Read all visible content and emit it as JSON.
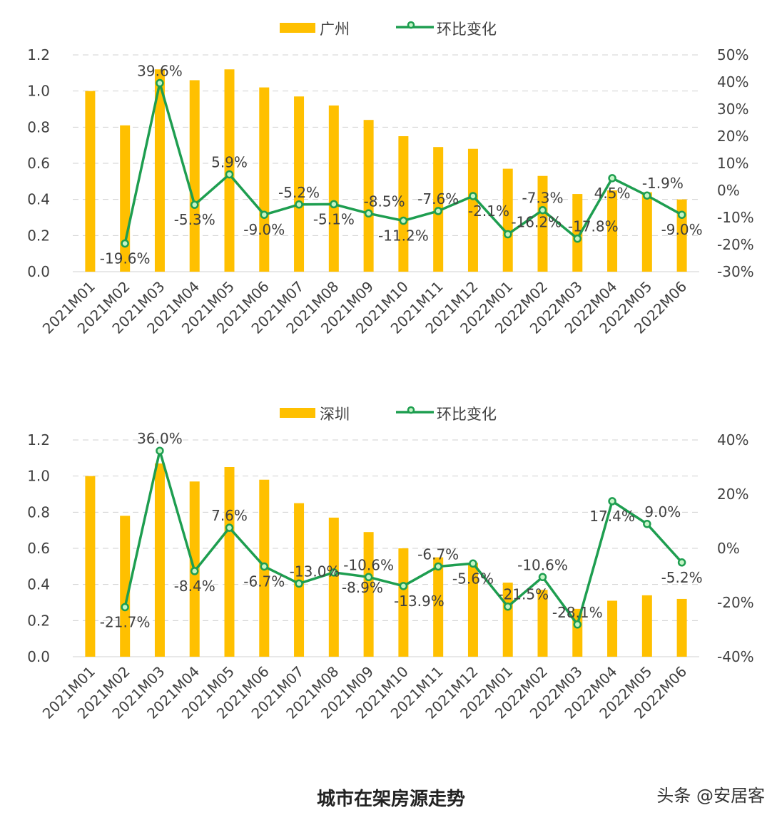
{
  "chart_data": [
    {
      "type": "bar+line",
      "categories": [
        "2021M01",
        "2021M02",
        "2021M03",
        "2021M04",
        "2021M05",
        "2021M06",
        "2021M07",
        "2021M08",
        "2021M09",
        "2021M10",
        "2021M11",
        "2021M12",
        "2022M01",
        "2022M02",
        "2022M03",
        "2022M04",
        "2022M05",
        "2022M06"
      ],
      "series": [
        {
          "name": "广州",
          "type": "bar",
          "axis": "left",
          "values": [
            1.0,
            0.81,
            1.12,
            1.06,
            1.12,
            1.02,
            0.97,
            0.92,
            0.84,
            0.75,
            0.69,
            0.68,
            0.57,
            0.53,
            0.43,
            0.45,
            0.44,
            0.4
          ]
        },
        {
          "name": "环比变化",
          "type": "line",
          "axis": "right",
          "values": [
            null,
            -19.6,
            39.6,
            -5.3,
            5.9,
            -9.0,
            -5.2,
            -5.1,
            -8.5,
            -11.2,
            -7.6,
            -2.1,
            -16.2,
            -7.3,
            -17.8,
            4.5,
            -1.9,
            -9.0
          ],
          "labels": [
            "",
            "-19.6%",
            "39.6%",
            "-5.3%",
            "5.9%",
            "-9.0%",
            "-5.2%",
            "-5.1%",
            "-8.5%",
            "-11.2%",
            "-7.6%",
            "-2.1%",
            "-16.2%",
            "-7.3%",
            "-17.8%",
            "4.5%",
            "-1.9%",
            "-9.0%"
          ]
        }
      ],
      "ylim_left": [
        0,
        1.2
      ],
      "yticks_left": [
        "0.0",
        "0.2",
        "0.4",
        "0.6",
        "0.8",
        "1.0",
        "1.2"
      ],
      "ylim_right": [
        -30,
        50
      ],
      "yticks_right": [
        "-30%",
        "-20%",
        "-10%",
        "0%",
        "10%",
        "20%",
        "30%",
        "40%",
        "50%"
      ],
      "grid": true,
      "legend": "top"
    },
    {
      "type": "bar+line",
      "categories": [
        "2021M01",
        "2021M02",
        "2021M03",
        "2021M04",
        "2021M05",
        "2021M06",
        "2021M07",
        "2021M08",
        "2021M09",
        "2021M10",
        "2021M11",
        "2021M12",
        "2022M01",
        "2022M02",
        "2022M03",
        "2022M04",
        "2022M05",
        "2022M06"
      ],
      "series": [
        {
          "name": "深圳",
          "type": "bar",
          "axis": "left",
          "values": [
            1.0,
            0.78,
            1.07,
            0.97,
            1.05,
            0.98,
            0.85,
            0.77,
            0.69,
            0.6,
            0.55,
            0.52,
            0.41,
            0.37,
            0.265,
            0.31,
            0.34,
            0.32
          ]
        },
        {
          "name": "环比变化",
          "type": "line",
          "axis": "right",
          "values": [
            null,
            -21.7,
            36.0,
            -8.4,
            7.6,
            -6.7,
            -13.0,
            -8.9,
            -10.6,
            -13.9,
            -6.7,
            -5.6,
            -21.5,
            -10.6,
            -28.1,
            17.4,
            9.0,
            -5.2
          ],
          "labels": [
            "",
            "-21.7%",
            "36.0%",
            "-8.4%",
            "7.6%",
            "-6.7%",
            "-13.0%",
            "-8.9%",
            "-10.6%",
            "-13.9%",
            "-6.7%",
            "-5.6%",
            "-21.5%",
            "-10.6%",
            "-28.1%",
            "17.4%",
            "9.0%",
            "-5.2%"
          ]
        }
      ],
      "ylim_left": [
        0,
        1.2
      ],
      "yticks_left": [
        "0.0",
        "0.2",
        "0.4",
        "0.6",
        "0.8",
        "1.0",
        "1.2"
      ],
      "ylim_right": [
        -40,
        40
      ],
      "yticks_right": [
        "-40%",
        "-20%",
        "0%",
        "20%",
        "40%"
      ],
      "grid": true,
      "legend": "top"
    }
  ],
  "colors": {
    "bar": "#FFC000",
    "line": "#1E9E50",
    "marker_fill": "#C6F5C6"
  },
  "footer": {
    "title": "城市在架房源走势",
    "watermark": "头条 @安居客"
  }
}
